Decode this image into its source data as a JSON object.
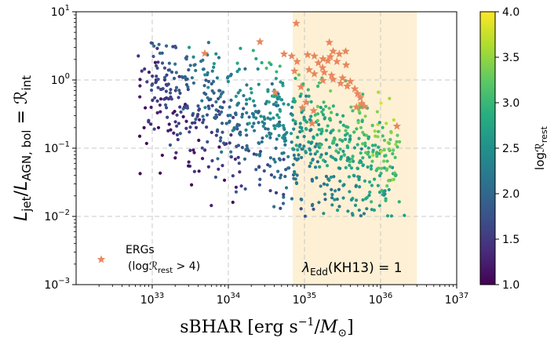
{
  "chart_data": {
    "type": "scatter",
    "x_scale": "log",
    "y_scale": "log",
    "xlim": [
      1e+32,
      1e+37
    ],
    "ylim": [
      0.001,
      10
    ],
    "x_ticks": [
      {
        "value": 1e+33,
        "base": "10",
        "exp": "33"
      },
      {
        "value": 1e+34,
        "base": "10",
        "exp": "34"
      },
      {
        "value": 1e+35,
        "base": "10",
        "exp": "35"
      },
      {
        "value": 1e+36,
        "base": "10",
        "exp": "36"
      },
      {
        "value": 1e+37,
        "base": "10",
        "exp": "37"
      }
    ],
    "y_ticks": [
      {
        "value": 0.001,
        "base": "10",
        "exp": "−3"
      },
      {
        "value": 0.01,
        "base": "10",
        "exp": "−2"
      },
      {
        "value": 0.1,
        "base": "10",
        "exp": "−1"
      },
      {
        "value": 1,
        "base": "10",
        "exp": "0"
      },
      {
        "value": 10,
        "base": "10",
        "exp": "1"
      }
    ],
    "xlabel": "sBHAR [erg s⁻¹/M⊙]",
    "xlabel_parts": {
      "main": "sBHAR [erg s",
      "sup": "−1",
      "after": "/",
      "italic": "M",
      "sub": "⊙",
      "close": "]"
    },
    "ylabel_parts": {
      "L": "L",
      "sub_jet": "jet",
      "slash": "/",
      "L2": "L",
      "sub_agn": "AGN, bol",
      "eq": " = ",
      "R": "ℛ",
      "sub_int": "int"
    },
    "grid": true,
    "colorbar": {
      "label_main": "log",
      "label_R": "ℛ",
      "label_sub": "rest",
      "range": [
        1.0,
        4.0
      ],
      "ticks": [
        "1.0",
        "1.5",
        "2.0",
        "2.5",
        "3.0",
        "3.5",
        "4.0"
      ],
      "colormap": "viridis"
    },
    "shaded_region": {
      "x_range": [
        7e+34,
        3e+36
      ],
      "color": "#fdf0d4",
      "label_parts": {
        "lambda": "λ",
        "sub": "Edd",
        "rest": "(KH13) = 1"
      }
    },
    "legend": {
      "placement": "lower-left",
      "marker": "star",
      "marker_color": "#e8875f",
      "line1": "ERGs",
      "line2_parts": {
        "open": "(log",
        "R": "ℛ",
        "sub": "rest",
        "close": " > 4)"
      }
    },
    "erg_series": {
      "name": "ERGs",
      "points": [
        {
          "x": 4.9e+33,
          "y": 2.45
        },
        {
          "x": 2.6e+34,
          "y": 3.63
        },
        {
          "x": 7.8e+34,
          "y": 6.76
        },
        {
          "x": 5.4e+34,
          "y": 2.4
        },
        {
          "x": 6.8e+34,
          "y": 2.24
        },
        {
          "x": 1.1e+35,
          "y": 2.34
        },
        {
          "x": 1.35e+35,
          "y": 2.24
        },
        {
          "x": 8e+34,
          "y": 1.86
        },
        {
          "x": 1.52e+35,
          "y": 1.78
        },
        {
          "x": 1.75e+35,
          "y": 2.04
        },
        {
          "x": 2.12e+35,
          "y": 3.55
        },
        {
          "x": 2.38e+35,
          "y": 2.63
        },
        {
          "x": 2.19e+35,
          "y": 2.19
        },
        {
          "x": 3.48e+35,
          "y": 2.63
        },
        {
          "x": 2.87e+35,
          "y": 2.4
        },
        {
          "x": 2.03e+35,
          "y": 1.91
        },
        {
          "x": 2.67e+35,
          "y": 1.86
        },
        {
          "x": 3.53e+35,
          "y": 1.66
        },
        {
          "x": 1.73e+35,
          "y": 1.51
        },
        {
          "x": 1.15e+35,
          "y": 1.41
        },
        {
          "x": 7.4e+34,
          "y": 1.35
        },
        {
          "x": 1.35e+35,
          "y": 1.23
        },
        {
          "x": 1.82e+35,
          "y": 1.29
        },
        {
          "x": 2.27e+35,
          "y": 1.17
        },
        {
          "x": 2.38e+35,
          "y": 1.02
        },
        {
          "x": 3.17e+35,
          "y": 1.07
        },
        {
          "x": 1.75e+35,
          "y": 0.98
        },
        {
          "x": 2.98e+35,
          "y": 0.89
        },
        {
          "x": 4e+35,
          "y": 0.95
        },
        {
          "x": 3.65e+35,
          "y": 0.81
        },
        {
          "x": 4.58e+35,
          "y": 0.74
        },
        {
          "x": 4.99e+35,
          "y": 0.63
        },
        {
          "x": 5.42e+35,
          "y": 0.55
        },
        {
          "x": 5.63e+35,
          "y": 0.45
        },
        {
          "x": 6.13e+35,
          "y": 0.41
        },
        {
          "x": 4.82e+35,
          "y": 0.4
        },
        {
          "x": 9e+34,
          "y": 0.79
        },
        {
          "x": 1.05e+35,
          "y": 0.47
        },
        {
          "x": 9.4e+34,
          "y": 0.39
        },
        {
          "x": 1.32e+35,
          "y": 0.355
        },
        {
          "x": 1.26e+35,
          "y": 0.23
        },
        {
          "x": 4.12e+34,
          "y": 0.66
        },
        {
          "x": 1.64e+36,
          "y": 0.21
        }
      ]
    },
    "sample_series": {
      "name": "",
      "points": []
    }
  }
}
